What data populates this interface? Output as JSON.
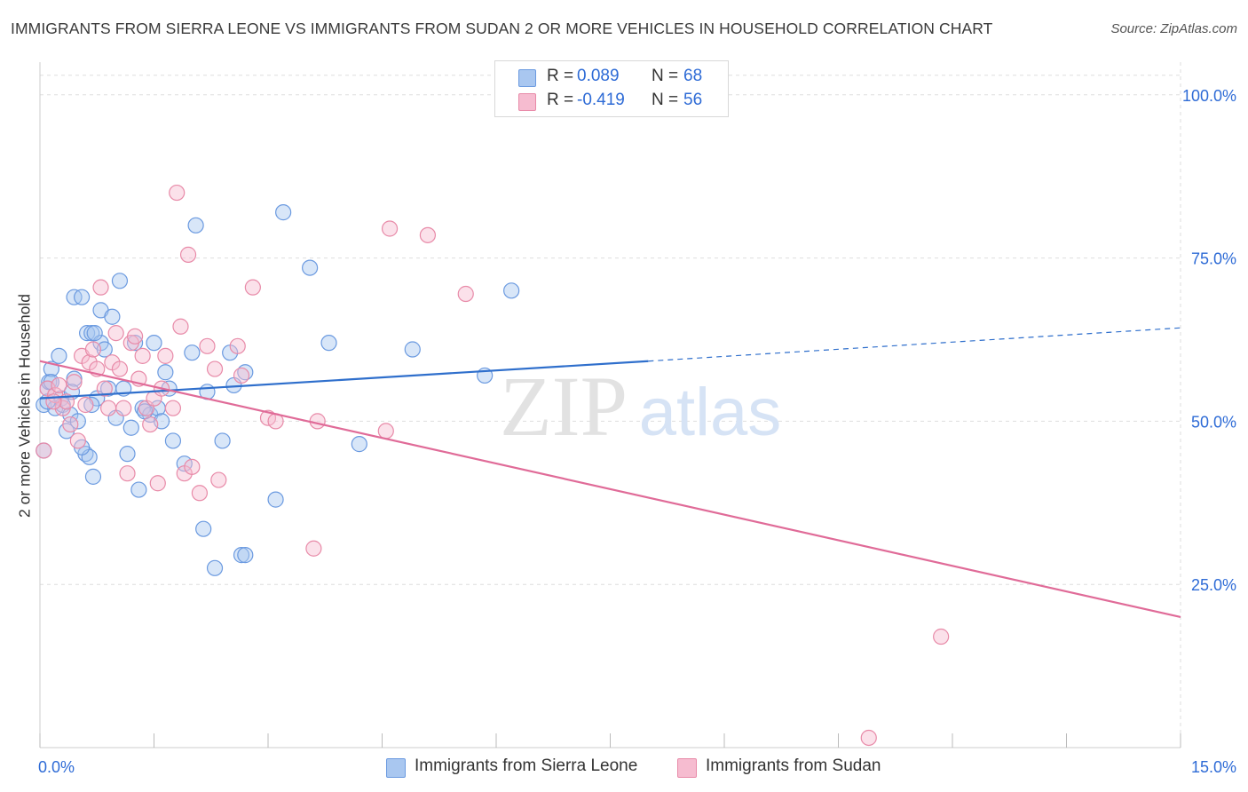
{
  "title": "IMMIGRANTS FROM SIERRA LEONE VS IMMIGRANTS FROM SUDAN 2 OR MORE VEHICLES IN HOUSEHOLD CORRELATION CHART",
  "source": "Source: ZipAtlas.com",
  "watermark": {
    "zip": "ZIP",
    "atlas": "atlas"
  },
  "legend": {
    "rows": [
      {
        "r_label": "R =",
        "r_value": "0.089",
        "n_label": "N =",
        "n_value": "68"
      },
      {
        "r_label": "R =",
        "r_value": "-0.419",
        "n_label": "N =",
        "n_value": "56"
      }
    ]
  },
  "colors": {
    "blue_fill": "#a9c7f0",
    "blue_stroke": "#6b9ae0",
    "blue_line": "#2f6fcc",
    "pink_fill": "#f6bcd0",
    "pink_stroke": "#e88aa8",
    "pink_line": "#e06b98",
    "axis_label": "#2e6bd6",
    "grid": "#dddddd"
  },
  "chart_data": {
    "type": "scatter",
    "title": "IMMIGRANTS FROM SIERRA LEONE VS IMMIGRANTS FROM SUDAN 2 OR MORE VEHICLES IN HOUSEHOLD CORRELATION CHART",
    "xlabel": "",
    "ylabel": "2 or more Vehicles in Household",
    "xlim": [
      0,
      15
    ],
    "ylim": [
      0,
      105
    ],
    "x_tick_labels": [
      "0.0%",
      "15.0%"
    ],
    "y_ticks": [
      25,
      50,
      75,
      100
    ],
    "y_tick_labels": [
      "25.0%",
      "50.0%",
      "75.0%",
      "100.0%"
    ],
    "grid": true,
    "legend_position": "top-center",
    "series": [
      {
        "name": "Immigrants from Sierra Leone",
        "color": "#6b9ae0",
        "trend": {
          "x": [
            0,
            8
          ],
          "y": [
            53.5,
            59.2
          ],
          "dashed_to": [
            15,
            64.3
          ]
        },
        "points": [
          [
            0.05,
            45.5
          ],
          [
            0.05,
            52.5
          ],
          [
            0.1,
            55
          ],
          [
            0.12,
            56
          ],
          [
            0.15,
            58
          ],
          [
            0.2,
            52
          ],
          [
            0.25,
            60
          ],
          [
            0.28,
            53.5
          ],
          [
            0.3,
            52.5
          ],
          [
            0.35,
            48.5
          ],
          [
            0.4,
            51
          ],
          [
            0.45,
            56.5
          ],
          [
            0.45,
            69
          ],
          [
            0.5,
            50
          ],
          [
            0.55,
            69
          ],
          [
            0.6,
            45
          ],
          [
            0.62,
            63.5
          ],
          [
            0.65,
            44.5
          ],
          [
            0.68,
            63.5
          ],
          [
            0.7,
            41.5
          ],
          [
            0.75,
            53.5
          ],
          [
            0.8,
            67
          ],
          [
            0.8,
            62
          ],
          [
            0.85,
            61
          ],
          [
            0.9,
            55
          ],
          [
            0.95,
            66
          ],
          [
            0.1,
            53
          ],
          [
            0.72,
            63.5
          ],
          [
            1.0,
            50.5
          ],
          [
            1.05,
            71.5
          ],
          [
            1.1,
            55
          ],
          [
            1.15,
            45
          ],
          [
            1.2,
            49
          ],
          [
            1.25,
            62
          ],
          [
            1.3,
            39.5
          ],
          [
            1.35,
            52
          ],
          [
            1.45,
            51
          ],
          [
            1.5,
            62
          ],
          [
            1.55,
            52
          ],
          [
            1.6,
            50
          ],
          [
            1.65,
            57.5
          ],
          [
            1.7,
            55
          ],
          [
            1.75,
            47
          ],
          [
            1.9,
            43.5
          ],
          [
            2.0,
            60.5
          ],
          [
            2.05,
            80
          ],
          [
            2.15,
            33.5
          ],
          [
            2.2,
            54.5
          ],
          [
            2.3,
            27.5
          ],
          [
            2.4,
            47
          ],
          [
            2.5,
            60.5
          ],
          [
            2.55,
            55.5
          ],
          [
            2.65,
            29.5
          ],
          [
            2.7,
            29.5
          ],
          [
            2.7,
            57.5
          ],
          [
            3.1,
            38
          ],
          [
            3.2,
            82
          ],
          [
            3.55,
            73.5
          ],
          [
            3.8,
            62
          ],
          [
            4.2,
            46.5
          ],
          [
            4.9,
            61
          ],
          [
            5.85,
            57
          ],
          [
            6.2,
            70
          ],
          [
            0.15,
            56
          ],
          [
            0.55,
            46
          ],
          [
            0.42,
            54.5
          ],
          [
            0.68,
            52.5
          ],
          [
            1.38,
            51.5
          ]
        ]
      },
      {
        "name": "Immigrants from Sudan",
        "color": "#e88aa8",
        "trend": {
          "x": [
            0,
            15
          ],
          "y": [
            59.2,
            20.0
          ]
        },
        "points": [
          [
            0.05,
            45.5
          ],
          [
            0.1,
            55
          ],
          [
            0.2,
            54
          ],
          [
            0.25,
            55.5
          ],
          [
            0.3,
            52
          ],
          [
            0.35,
            53
          ],
          [
            0.4,
            49.5
          ],
          [
            0.45,
            56
          ],
          [
            0.5,
            47
          ],
          [
            0.55,
            60
          ],
          [
            0.6,
            52.5
          ],
          [
            0.65,
            59
          ],
          [
            0.7,
            61
          ],
          [
            0.75,
            58
          ],
          [
            0.8,
            70.5
          ],
          [
            0.85,
            55
          ],
          [
            0.9,
            52
          ],
          [
            0.95,
            59
          ],
          [
            1.0,
            63.5
          ],
          [
            1.05,
            58
          ],
          [
            1.1,
            52
          ],
          [
            1.15,
            42
          ],
          [
            1.2,
            62
          ],
          [
            1.25,
            63
          ],
          [
            1.3,
            56.5
          ],
          [
            1.35,
            60
          ],
          [
            1.4,
            52
          ],
          [
            1.45,
            49.5
          ],
          [
            1.5,
            53.5
          ],
          [
            1.55,
            40.5
          ],
          [
            1.6,
            55
          ],
          [
            1.65,
            60
          ],
          [
            1.75,
            52
          ],
          [
            1.8,
            85
          ],
          [
            1.85,
            64.5
          ],
          [
            1.9,
            42
          ],
          [
            1.95,
            75.5
          ],
          [
            2.0,
            43
          ],
          [
            2.1,
            39
          ],
          [
            2.2,
            61.5
          ],
          [
            2.3,
            58
          ],
          [
            2.35,
            41
          ],
          [
            2.6,
            61.5
          ],
          [
            2.65,
            57
          ],
          [
            2.8,
            70.5
          ],
          [
            3.0,
            50.5
          ],
          [
            3.1,
            50
          ],
          [
            3.6,
            30.5
          ],
          [
            3.65,
            50
          ],
          [
            4.55,
            48.5
          ],
          [
            4.6,
            79.5
          ],
          [
            5.1,
            78.5
          ],
          [
            5.6,
            69.5
          ],
          [
            11.85,
            17
          ],
          [
            10.9,
            1.5
          ],
          [
            0.18,
            53
          ]
        ]
      }
    ]
  },
  "bottom_legend": {
    "items": [
      {
        "label": "Immigrants from Sierra Leone"
      },
      {
        "label": "Immigrants from Sudan"
      }
    ]
  }
}
